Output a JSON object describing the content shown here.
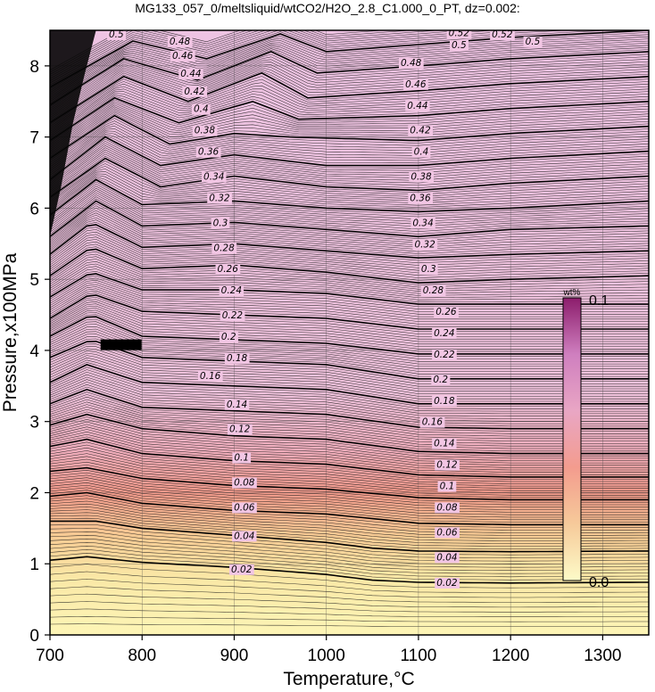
{
  "chart_data": {
    "type": "contour",
    "title": "MG133_057_0/meltsliquid/wtCO2/H2O_2.8_C1.000_0_PT, dz=0.002:",
    "xlabel": "Temperature,°C",
    "ylabel": "Pressure,x100MPa",
    "xlim": [
      700,
      1350
    ],
    "ylim": [
      0,
      8.5
    ],
    "x_ticks": [
      700,
      800,
      900,
      1000,
      1100,
      1200,
      1300
    ],
    "y_ticks": [
      0,
      1,
      2,
      3,
      4,
      5,
      6,
      7,
      8
    ],
    "grid": true,
    "contour_interval": 0.002,
    "major_contour_interval": 0.02,
    "colorbar": {
      "unit": "wt%",
      "min_label": "0.0",
      "max_label": "0.1",
      "colors": [
        "#fdfbc8",
        "#f6ca9a",
        "#f39c8e",
        "#e9a6c4",
        "#cf7fbf",
        "#8c1d6c"
      ]
    },
    "color_ramp": [
      {
        "p": 0.0,
        "color": "#fdf5b6"
      },
      {
        "p": 0.8,
        "color": "#fae8a6"
      },
      {
        "p": 1.4,
        "color": "#f7cb94"
      },
      {
        "p": 2.0,
        "color": "#f29a8b"
      },
      {
        "p": 2.6,
        "color": "#f0aebd"
      },
      {
        "p": 3.4,
        "color": "#efc2dc"
      },
      {
        "p": 8.5,
        "color": "#eec3e3"
      }
    ],
    "major_contours": [
      {
        "value": "0.02",
        "points": [
          [
            700,
            1.05
          ],
          [
            740,
            1.1
          ],
          [
            800,
            1.02
          ],
          [
            900,
            0.95
          ],
          [
            1000,
            0.85
          ],
          [
            1050,
            0.77
          ],
          [
            1100,
            0.74
          ],
          [
            1200,
            0.73
          ],
          [
            1350,
            0.74
          ]
        ]
      },
      {
        "value": "0.04",
        "points": [
          [
            700,
            1.6
          ],
          [
            750,
            1.6
          ],
          [
            800,
            1.5
          ],
          [
            900,
            1.4
          ],
          [
            1000,
            1.3
          ],
          [
            1050,
            1.22
          ],
          [
            1100,
            1.18
          ],
          [
            1200,
            1.17
          ],
          [
            1350,
            1.18
          ]
        ]
      },
      {
        "value": "0.06",
        "points": [
          [
            700,
            1.95
          ],
          [
            740,
            2.0
          ],
          [
            800,
            1.85
          ],
          [
            900,
            1.75
          ],
          [
            1000,
            1.7
          ],
          [
            1100,
            1.57
          ],
          [
            1200,
            1.55
          ],
          [
            1350,
            1.55
          ]
        ]
      },
      {
        "value": "0.08",
        "points": [
          [
            700,
            2.3
          ],
          [
            740,
            2.35
          ],
          [
            800,
            2.2
          ],
          [
            900,
            2.1
          ],
          [
            1000,
            2.05
          ],
          [
            1100,
            1.93
          ],
          [
            1200,
            1.9
          ],
          [
            1350,
            1.9
          ]
        ]
      },
      {
        "value": "0.1",
        "points": [
          [
            700,
            2.65
          ],
          [
            740,
            2.75
          ],
          [
            800,
            2.55
          ],
          [
            900,
            2.45
          ],
          [
            1000,
            2.4
          ],
          [
            1100,
            2.25
          ],
          [
            1200,
            2.22
          ],
          [
            1350,
            2.22
          ]
        ]
      },
      {
        "value": "0.12",
        "points": [
          [
            700,
            2.95
          ],
          [
            740,
            3.1
          ],
          [
            800,
            2.9
          ],
          [
            900,
            2.8
          ],
          [
            1000,
            2.75
          ],
          [
            1100,
            2.58
          ],
          [
            1200,
            2.55
          ],
          [
            1350,
            2.55
          ]
        ]
      },
      {
        "value": "0.14",
        "points": [
          [
            700,
            3.25
          ],
          [
            740,
            3.45
          ],
          [
            800,
            3.2
          ],
          [
            900,
            3.15
          ],
          [
            1000,
            3.1
          ],
          [
            1100,
            2.92
          ],
          [
            1200,
            2.9
          ],
          [
            1350,
            2.9
          ]
        ]
      },
      {
        "value": "0.16",
        "points": [
          [
            700,
            3.55
          ],
          [
            740,
            3.8
          ],
          [
            800,
            3.55
          ],
          [
            900,
            3.5
          ],
          [
            1000,
            3.45
          ],
          [
            1100,
            3.25
          ],
          [
            1200,
            3.25
          ],
          [
            1350,
            3.25
          ]
        ]
      },
      {
        "value": "0.18",
        "points": [
          [
            700,
            3.9
          ],
          [
            745,
            4.15
          ],
          [
            800,
            3.9
          ],
          [
            900,
            3.85
          ],
          [
            1000,
            3.8
          ],
          [
            1100,
            3.6
          ],
          [
            1200,
            3.6
          ],
          [
            1350,
            3.6
          ]
        ]
      },
      {
        "value": "0.2",
        "points": [
          [
            700,
            4.2
          ],
          [
            745,
            4.5
          ],
          [
            800,
            4.2
          ],
          [
            900,
            4.15
          ],
          [
            1000,
            4.1
          ],
          [
            1100,
            3.95
          ],
          [
            1200,
            3.95
          ],
          [
            1350,
            3.95
          ]
        ]
      },
      {
        "value": "0.22",
        "points": [
          [
            700,
            4.45
          ],
          [
            745,
            4.8
          ],
          [
            800,
            4.55
          ],
          [
            900,
            4.5
          ],
          [
            1000,
            4.45
          ],
          [
            1100,
            4.3
          ],
          [
            1200,
            4.3
          ],
          [
            1350,
            4.3
          ]
        ]
      },
      {
        "value": "0.24",
        "points": [
          [
            700,
            4.75
          ],
          [
            745,
            5.1
          ],
          [
            800,
            4.85
          ],
          [
            900,
            4.85
          ],
          [
            1000,
            4.8
          ],
          [
            1100,
            4.65
          ],
          [
            1200,
            4.65
          ],
          [
            1350,
            4.65
          ]
        ]
      },
      {
        "value": "0.26",
        "points": [
          [
            700,
            5.05
          ],
          [
            745,
            5.45
          ],
          [
            800,
            5.15
          ],
          [
            900,
            5.2
          ],
          [
            1000,
            5.1
          ],
          [
            1100,
            4.95
          ],
          [
            1200,
            5.0
          ],
          [
            1350,
            5.05
          ]
        ]
      },
      {
        "value": "0.28",
        "points": [
          [
            700,
            5.35
          ],
          [
            745,
            5.8
          ],
          [
            800,
            5.45
          ],
          [
            900,
            5.5
          ],
          [
            1000,
            5.4
          ],
          [
            1100,
            5.3
          ],
          [
            1200,
            5.35
          ],
          [
            1350,
            5.4
          ]
        ]
      },
      {
        "value": "0.3",
        "points": [
          [
            700,
            5.6
          ],
          [
            750,
            6.1
          ],
          [
            800,
            5.75
          ],
          [
            900,
            5.8
          ],
          [
            1000,
            5.7
          ],
          [
            1100,
            5.6
          ],
          [
            1200,
            5.7
          ],
          [
            1350,
            5.75
          ]
        ]
      },
      {
        "value": "0.32",
        "points": [
          [
            700,
            5.9
          ],
          [
            750,
            6.4
          ],
          [
            800,
            6.05
          ],
          [
            900,
            6.1
          ],
          [
            1000,
            6.0
          ],
          [
            1100,
            5.95
          ],
          [
            1200,
            6.0
          ],
          [
            1350,
            6.1
          ]
        ]
      },
      {
        "value": "0.34",
        "points": [
          [
            700,
            6.15
          ],
          [
            760,
            6.7
          ],
          [
            820,
            6.3
          ],
          [
            900,
            6.45
          ],
          [
            1000,
            6.3
          ],
          [
            1100,
            6.25
          ],
          [
            1200,
            6.35
          ],
          [
            1350,
            6.45
          ]
        ]
      },
      {
        "value": "0.36",
        "points": [
          [
            700,
            6.4
          ],
          [
            760,
            7.0
          ],
          [
            820,
            6.6
          ],
          [
            900,
            6.75
          ],
          [
            1000,
            6.6
          ],
          [
            1100,
            6.6
          ],
          [
            1200,
            6.7
          ],
          [
            1350,
            6.8
          ]
        ]
      },
      {
        "value": "0.38",
        "points": [
          [
            700,
            6.7
          ],
          [
            770,
            7.3
          ],
          [
            830,
            6.9
          ],
          [
            900,
            7.05
          ],
          [
            960,
            7.0
          ],
          [
            1100,
            6.95
          ],
          [
            1200,
            7.05
          ],
          [
            1350,
            7.15
          ]
        ]
      },
      {
        "value": "0.4",
        "points": [
          [
            700,
            6.95
          ],
          [
            770,
            7.55
          ],
          [
            840,
            7.2
          ],
          [
            920,
            7.5
          ],
          [
            970,
            7.25
          ],
          [
            1100,
            7.3
          ],
          [
            1200,
            7.4
          ],
          [
            1350,
            7.5
          ]
        ]
      },
      {
        "value": "0.42",
        "points": [
          [
            700,
            7.2
          ],
          [
            780,
            7.85
          ],
          [
            850,
            7.5
          ],
          [
            930,
            7.9
          ],
          [
            980,
            7.55
          ],
          [
            1100,
            7.65
          ],
          [
            1200,
            7.75
          ],
          [
            1350,
            7.85
          ]
        ]
      },
      {
        "value": "0.44",
        "points": [
          [
            700,
            7.45
          ],
          [
            780,
            8.1
          ],
          [
            860,
            7.8
          ],
          [
            940,
            8.2
          ],
          [
            990,
            7.9
          ],
          [
            1100,
            8.0
          ],
          [
            1200,
            8.1
          ],
          [
            1350,
            8.2
          ]
        ]
      },
      {
        "value": "0.46",
        "points": [
          [
            700,
            7.7
          ],
          [
            790,
            8.35
          ],
          [
            870,
            8.1
          ],
          [
            950,
            8.45
          ],
          [
            1000,
            8.2
          ],
          [
            1100,
            8.3
          ],
          [
            1200,
            8.4
          ],
          [
            1350,
            8.5
          ]
        ]
      }
    ],
    "contour_labels": [
      {
        "text": "0.02",
        "x": 908,
        "y": 0.93
      },
      {
        "text": "0.02",
        "x": 1131,
        "y": 0.74
      },
      {
        "text": "0.04",
        "x": 911,
        "y": 1.4
      },
      {
        "text": "0.04",
        "x": 1131,
        "y": 1.1
      },
      {
        "text": "0.06",
        "x": 911,
        "y": 1.8
      },
      {
        "text": "0.06",
        "x": 1131,
        "y": 1.45
      },
      {
        "text": "0.08",
        "x": 911,
        "y": 2.15
      },
      {
        "text": "0.08",
        "x": 1131,
        "y": 1.8
      },
      {
        "text": "0.1",
        "x": 908,
        "y": 2.5
      },
      {
        "text": "0.1",
        "x": 1131,
        "y": 2.1
      },
      {
        "text": "0.12",
        "x": 906,
        "y": 2.9
      },
      {
        "text": "0.12",
        "x": 1131,
        "y": 2.4
      },
      {
        "text": "0.14",
        "x": 903,
        "y": 3.25
      },
      {
        "text": "0.14",
        "x": 1128,
        "y": 2.7
      },
      {
        "text": "0.16",
        "x": 874,
        "y": 3.65
      },
      {
        "text": "0.16",
        "x": 1115,
        "y": 3.0
      },
      {
        "text": "0.18",
        "x": 903,
        "y": 3.9
      },
      {
        "text": "0.18",
        "x": 1128,
        "y": 3.3
      },
      {
        "text": "0.2",
        "x": 894,
        "y": 4.2
      },
      {
        "text": "0.2",
        "x": 1124,
        "y": 3.6
      },
      {
        "text": "0.22",
        "x": 898,
        "y": 4.5
      },
      {
        "text": "0.22",
        "x": 1128,
        "y": 3.95
      },
      {
        "text": "0.24",
        "x": 897,
        "y": 4.85
      },
      {
        "text": "0.24",
        "x": 1128,
        "y": 4.25
      },
      {
        "text": "0.26",
        "x": 893,
        "y": 5.15
      },
      {
        "text": "0.26",
        "x": 1130,
        "y": 4.55
      },
      {
        "text": "0.28",
        "x": 889,
        "y": 5.45
      },
      {
        "text": "0.28",
        "x": 1116,
        "y": 4.85
      },
      {
        "text": "0.3",
        "x": 885,
        "y": 5.8
      },
      {
        "text": "0.3",
        "x": 1111,
        "y": 5.15
      },
      {
        "text": "0.32",
        "x": 884,
        "y": 6.15
      },
      {
        "text": "0.32",
        "x": 1107,
        "y": 5.5
      },
      {
        "text": "0.34",
        "x": 878,
        "y": 6.45
      },
      {
        "text": "0.34",
        "x": 1105,
        "y": 5.8
      },
      {
        "text": "0.36",
        "x": 872,
        "y": 6.8
      },
      {
        "text": "0.36",
        "x": 1102,
        "y": 6.15
      },
      {
        "text": "0.38",
        "x": 868,
        "y": 7.1
      },
      {
        "text": "0.38",
        "x": 1103,
        "y": 6.45
      },
      {
        "text": "0.4",
        "x": 864,
        "y": 7.4
      },
      {
        "text": "0.4",
        "x": 1103,
        "y": 6.8
      },
      {
        "text": "0.42",
        "x": 857,
        "y": 7.65
      },
      {
        "text": "0.42",
        "x": 1102,
        "y": 7.1
      },
      {
        "text": "0.44",
        "x": 853,
        "y": 7.9
      },
      {
        "text": "0.44",
        "x": 1099,
        "y": 7.45
      },
      {
        "text": "0.46",
        "x": 844,
        "y": 8.15
      },
      {
        "text": "0.46",
        "x": 1097,
        "y": 7.75
      },
      {
        "text": "0.48",
        "x": 841,
        "y": 8.35
      },
      {
        "text": "0.48",
        "x": 1092,
        "y": 8.05
      },
      {
        "text": "0.5",
        "x": 772,
        "y": 8.45
      },
      {
        "text": "0.5",
        "x": 1144,
        "y": 8.3
      },
      {
        "text": "0.5",
        "x": 1224,
        "y": 8.35
      },
      {
        "text": "0.52",
        "x": 1144,
        "y": 8.47
      },
      {
        "text": "0.52",
        "x": 1191,
        "y": 8.45
      }
    ]
  }
}
